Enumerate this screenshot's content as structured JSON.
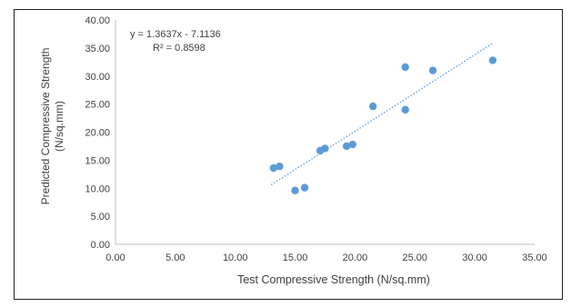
{
  "chart_data": {
    "type": "scatter",
    "title": "",
    "xlabel": "Test Compressive Strength (N/sq.mm)",
    "ylabel": [
      "Predicted Compressive Strength",
      "(N/sq.mm)"
    ],
    "xlim": [
      0,
      35
    ],
    "ylim": [
      0,
      40
    ],
    "x_ticks": [
      "0.00",
      "5.00",
      "10.00",
      "15.00",
      "20.00",
      "25.00",
      "30.00",
      "35.00"
    ],
    "y_ticks": [
      "0.00",
      "5.00",
      "10.00",
      "15.00",
      "20.00",
      "25.00",
      "30.00",
      "35.00",
      "40.00"
    ],
    "grid": false,
    "legend": "none",
    "series": [
      {
        "points": [
          {
            "x": 13.2,
            "y": 13.6
          },
          {
            "x": 13.7,
            "y": 13.9
          },
          {
            "x": 15.0,
            "y": 9.6
          },
          {
            "x": 15.8,
            "y": 10.1
          },
          {
            "x": 17.1,
            "y": 16.7
          },
          {
            "x": 17.5,
            "y": 17.1
          },
          {
            "x": 19.3,
            "y": 17.5
          },
          {
            "x": 19.8,
            "y": 17.8
          },
          {
            "x": 21.5,
            "y": 24.6
          },
          {
            "x": 24.2,
            "y": 31.6
          },
          {
            "x": 24.2,
            "y": 24.0
          },
          {
            "x": 26.5,
            "y": 31.0
          },
          {
            "x": 31.5,
            "y": 32.8
          }
        ],
        "color": "#5b9bd5"
      }
    ],
    "trendline": {
      "type": "linear",
      "slope": 1.3637,
      "intercept": -7.1136,
      "x_range": [
        13.0,
        31.5
      ],
      "style": "dotted",
      "color": "#5b9bd5"
    },
    "annotations": [
      "y = 1.3637x - 7.1136",
      "R² = 0.8598"
    ],
    "colors": {
      "axis": "#bfbfbf",
      "text": "#404040",
      "point": "#5b9bd5"
    }
  }
}
